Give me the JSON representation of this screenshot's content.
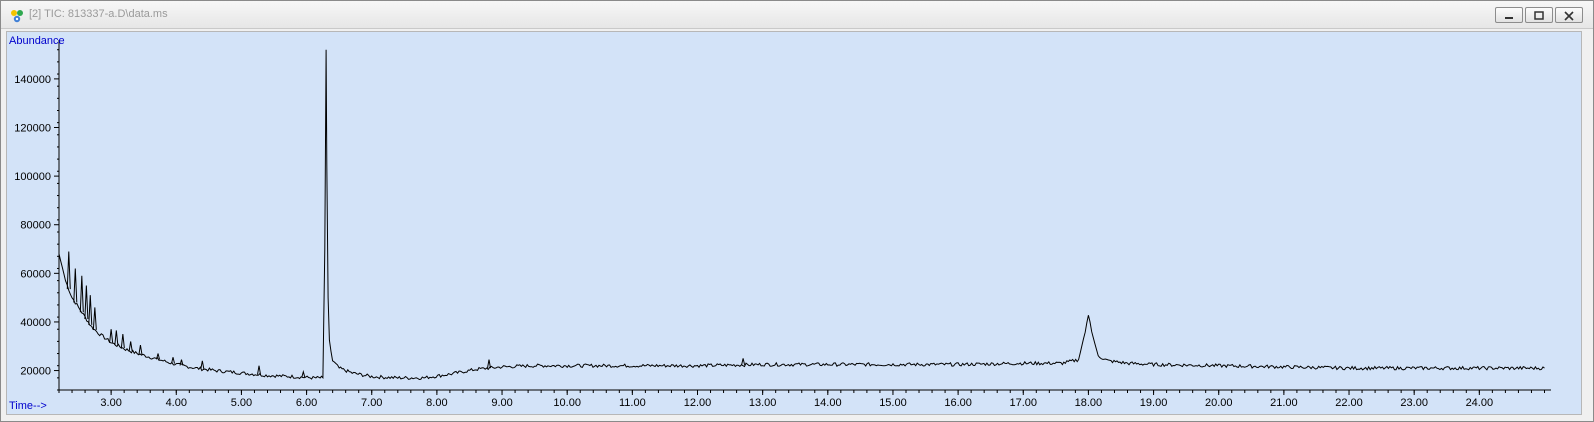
{
  "window": {
    "title": "[2] TIC: 813337-a.D\\data.ms",
    "icons": [
      "chromatogram-app-icon",
      "minimize-icon",
      "restore-icon",
      "close-icon"
    ]
  },
  "chart_data": {
    "type": "line",
    "title": "",
    "ylabel": "Abundance",
    "xlabel": "Time-->",
    "xlim": [
      2.2,
      25.1
    ],
    "ylim": [
      12000,
      156000
    ],
    "y_ticks": [
      20000,
      40000,
      60000,
      80000,
      100000,
      120000,
      140000
    ],
    "y_tick_labels": [
      "20000",
      "40000",
      "60000",
      "80000",
      "100000",
      "120000",
      "140000"
    ],
    "x_ticks": [
      3,
      4,
      5,
      6,
      7,
      8,
      9,
      10,
      11,
      12,
      13,
      14,
      15,
      16,
      17,
      18,
      19,
      20,
      21,
      22,
      23,
      24
    ],
    "x_tick_labels": [
      "3.00",
      "4.00",
      "5.00",
      "6.00",
      "7.00",
      "8.00",
      "9.00",
      "10.00",
      "11.00",
      "12.00",
      "13.00",
      "14.00",
      "15.00",
      "16.00",
      "17.00",
      "18.00",
      "19.00",
      "20.00",
      "21.00",
      "22.00",
      "23.00",
      "24.00"
    ],
    "line_color": "#000000",
    "background_color": "#d3e3f8",
    "axis_text_color": "#0000cc",
    "series": [
      {
        "x": [
          2.2,
          2.3,
          2.4,
          2.5,
          2.6,
          2.7,
          2.8,
          2.9,
          3.0,
          3.2,
          3.4,
          3.6,
          3.8,
          4.0,
          4.3,
          4.6,
          5.0,
          5.4,
          5.8,
          6.1,
          6.25,
          6.28,
          6.3,
          6.31,
          6.33,
          6.35,
          6.4,
          6.5,
          6.7,
          7.0,
          7.4,
          7.8,
          8.2,
          8.6,
          9.0,
          9.5,
          10.0,
          11.0,
          12.0,
          13.0,
          14.0,
          15.0,
          16.0,
          17.0,
          17.6,
          17.85,
          17.95,
          18.0,
          18.05,
          18.15,
          18.3,
          18.6,
          19.0,
          20.0,
          21.0,
          22.0,
          23.0,
          24.0,
          25.0
        ],
        "y": [
          68000,
          57000,
          50000,
          46000,
          42000,
          38000,
          35500,
          33500,
          31500,
          29000,
          27000,
          25500,
          24000,
          22500,
          21000,
          20000,
          19000,
          18000,
          17500,
          17000,
          17000,
          70000,
          152000,
          105000,
          50000,
          32000,
          24000,
          21000,
          19000,
          17500,
          17000,
          17000,
          18500,
          20500,
          21500,
          22000,
          22000,
          22000,
          22000,
          22500,
          22500,
          22500,
          22500,
          23000,
          23000,
          24500,
          36000,
          43000,
          36000,
          26000,
          24000,
          23000,
          22500,
          22000,
          21500,
          21000,
          21000,
          21000,
          21000
        ]
      }
    ],
    "minor_peaks": [
      {
        "x": 2.35,
        "y": 69000
      },
      {
        "x": 2.45,
        "y": 62000
      },
      {
        "x": 2.55,
        "y": 59000
      },
      {
        "x": 2.62,
        "y": 55000
      },
      {
        "x": 2.68,
        "y": 51000
      },
      {
        "x": 2.75,
        "y": 46000
      },
      {
        "x": 3.0,
        "y": 37000
      },
      {
        "x": 3.08,
        "y": 36500
      },
      {
        "x": 3.18,
        "y": 35000
      },
      {
        "x": 3.3,
        "y": 32000
      },
      {
        "x": 3.45,
        "y": 30500
      },
      {
        "x": 3.72,
        "y": 27000
      },
      {
        "x": 3.95,
        "y": 25500
      },
      {
        "x": 4.08,
        "y": 24500
      },
      {
        "x": 4.4,
        "y": 24000
      },
      {
        "x": 5.27,
        "y": 22000
      },
      {
        "x": 5.95,
        "y": 19500
      },
      {
        "x": 8.8,
        "y": 24500
      },
      {
        "x": 12.7,
        "y": 25000
      }
    ]
  }
}
